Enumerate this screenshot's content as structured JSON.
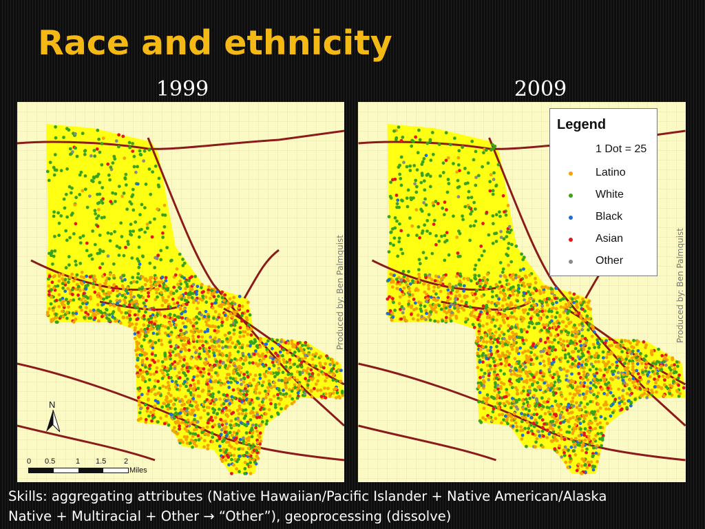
{
  "slide": {
    "title": "Race and ethnicity",
    "caption_line1": "Skills: aggregating attributes (Native Hawaiian/Pacific Islander + Native American/Alaska",
    "caption_line2": "Native + Multiracial + Other  →  “Other”), geoprocessing (dissolve)"
  },
  "maps": [
    {
      "year": "1999",
      "credit": "Produced by: Ben Palmquist",
      "north_label": "N",
      "scale_ticks": [
        "0",
        "0.5",
        "1",
        "1.5",
        "2"
      ],
      "scale_unit": "Miles"
    },
    {
      "year": "2009",
      "credit": "Produced by: Ben Palmquist"
    }
  ],
  "legend": {
    "title": "Legend",
    "note": "1 Dot = 25",
    "items": [
      {
        "label": "Latino",
        "color": "#f4a300"
      },
      {
        "label": "White",
        "color": "#3aa31a"
      },
      {
        "label": "Black",
        "color": "#1f6ed1"
      },
      {
        "label": "Asian",
        "color": "#e3161b"
      },
      {
        "label": "Other",
        "color": "#8a8a8a"
      }
    ]
  },
  "colors": {
    "title": "#f4b914",
    "map_background": "#fbfac4",
    "district_fill": "#ffff14",
    "freeway": "#8b1a1a"
  }
}
